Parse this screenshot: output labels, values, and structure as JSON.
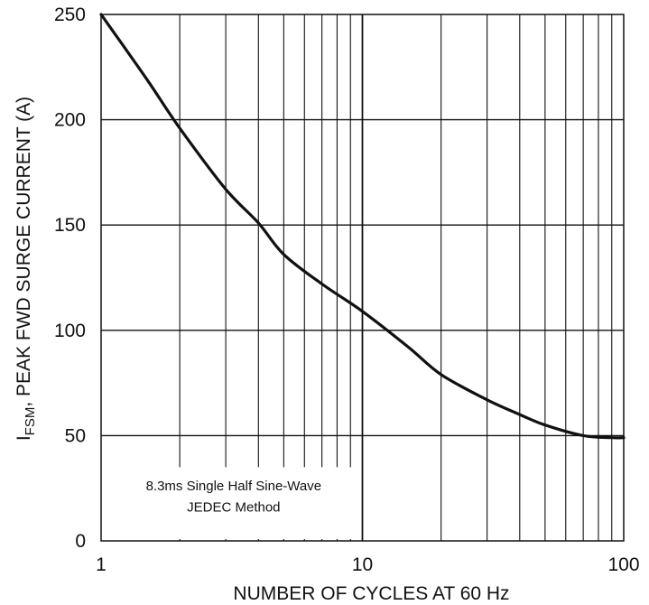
{
  "chart_data": {
    "type": "line",
    "xscale": "log",
    "xlim": [
      1,
      100
    ],
    "ylim": [
      0,
      250
    ],
    "xticks": [
      "1",
      "10",
      "100"
    ],
    "yticks": [
      "0",
      "50",
      "100",
      "150",
      "200",
      "250"
    ],
    "xlabel": "NUMBER OF CYCLES AT 60 Hz",
    "ylabel_main": "I",
    "ylabel_sub": "FSM",
    "ylabel_rest": ", PEAK FWD SURGE CURRENT (A)",
    "grid": true,
    "annotation": [
      "8.3ms Single Half Sine-Wave",
      "JEDEC Method"
    ],
    "series": [
      {
        "color": "#111111",
        "x": [
          1,
          1.5,
          2,
          3,
          4,
          5,
          7,
          10,
          15,
          20,
          30,
          40,
          50,
          70,
          90,
          100
        ],
        "y": [
          250,
          219,
          196,
          167,
          151,
          136,
          122,
          109,
          92,
          79,
          67,
          60,
          55,
          50,
          49,
          49
        ]
      }
    ]
  }
}
